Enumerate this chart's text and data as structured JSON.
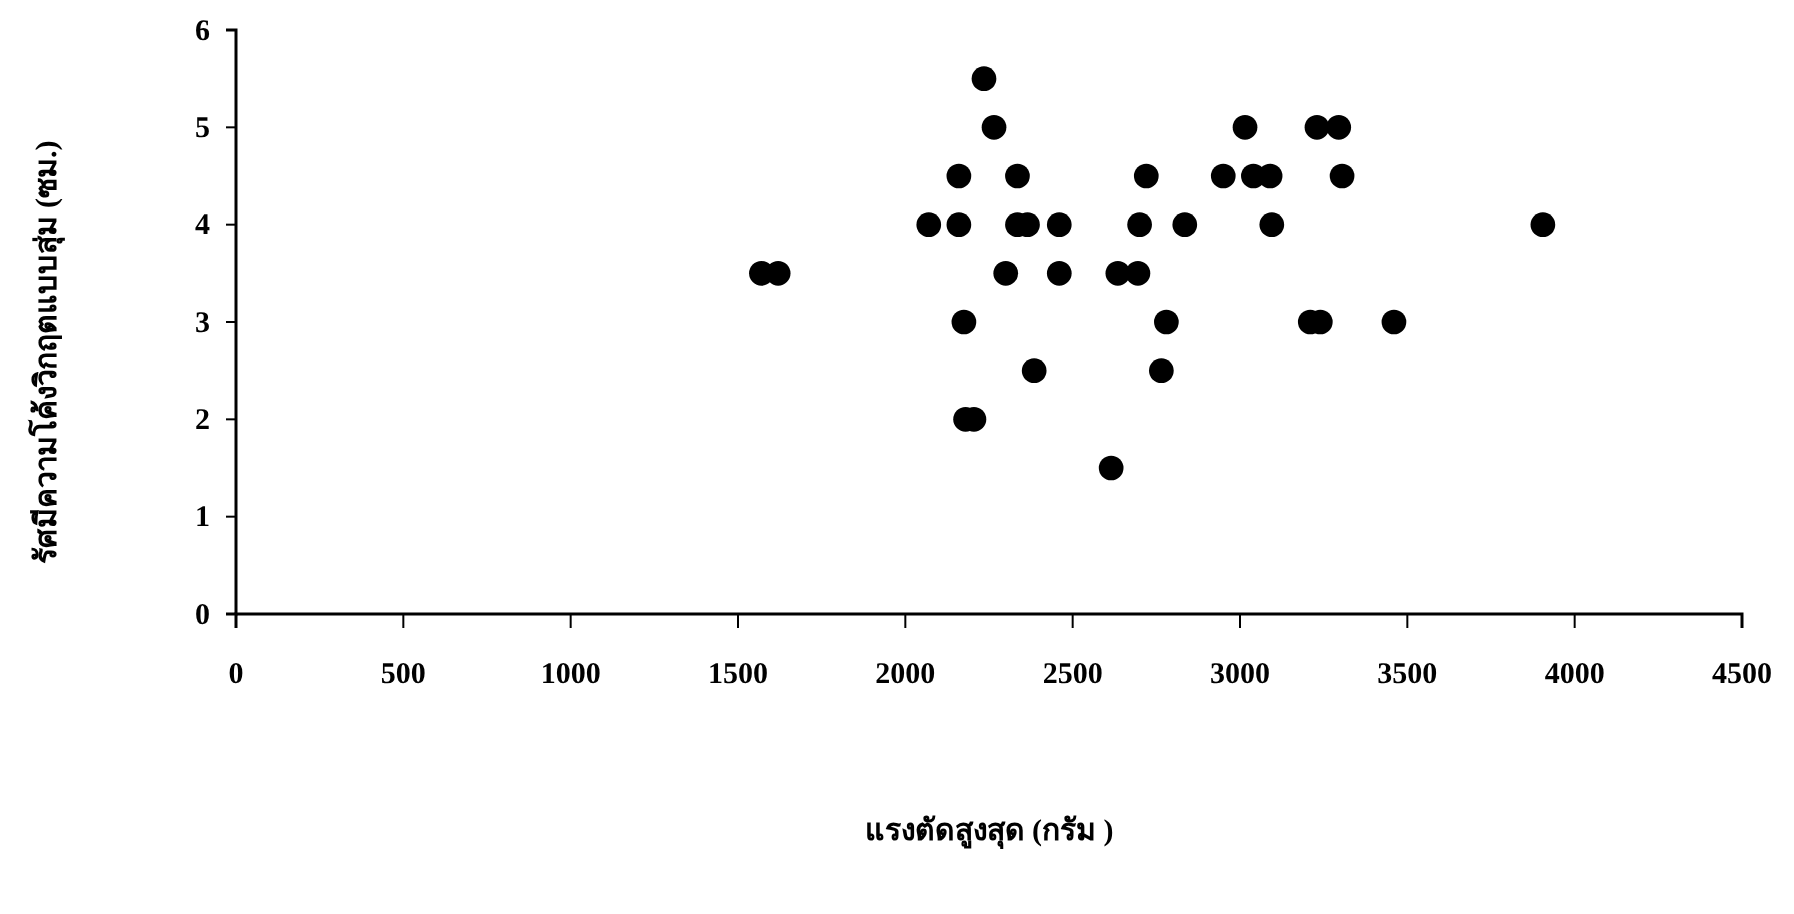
{
  "chart_data": {
    "type": "scatter",
    "xlabel": "แรงตัดสูงสุด (กรัม )",
    "ylabel": "รัศมีความโค้งวิกฤตแบบสุ่ม (ซม.)",
    "xlim": [
      0,
      4500
    ],
    "xticks": [
      0,
      500,
      1000,
      1500,
      2000,
      2500,
      3000,
      3500,
      4000,
      4500
    ],
    "ylim": [
      0,
      6
    ],
    "yticks": [
      0,
      1,
      2,
      3,
      4,
      5,
      6
    ],
    "grid": false,
    "marker": "circle",
    "series": [
      {
        "color": "#000000",
        "x": [
          1570,
          1620,
          2070,
          2160,
          2160,
          2175,
          2180,
          2205,
          2235,
          2265,
          2335,
          2300,
          2335,
          2365,
          2460,
          2460,
          2385,
          2615,
          2635,
          2695,
          2700,
          2720,
          2780,
          2765,
          2835,
          2950,
          3015,
          3040,
          3090,
          3095,
          3210,
          3240,
          3230,
          3295,
          3305,
          3460,
          3905
        ],
        "values": [
          3.5,
          3.5,
          4,
          4,
          4.5,
          3,
          2,
          2,
          5.5,
          5,
          4.5,
          3.5,
          4,
          4,
          4,
          3.5,
          2.5,
          1.5,
          3.5,
          3.5,
          4,
          4.5,
          3,
          2.5,
          4,
          4.5,
          5,
          4.5,
          4.5,
          4,
          3,
          3,
          5,
          5,
          4.5,
          3,
          4
        ]
      }
    ]
  }
}
